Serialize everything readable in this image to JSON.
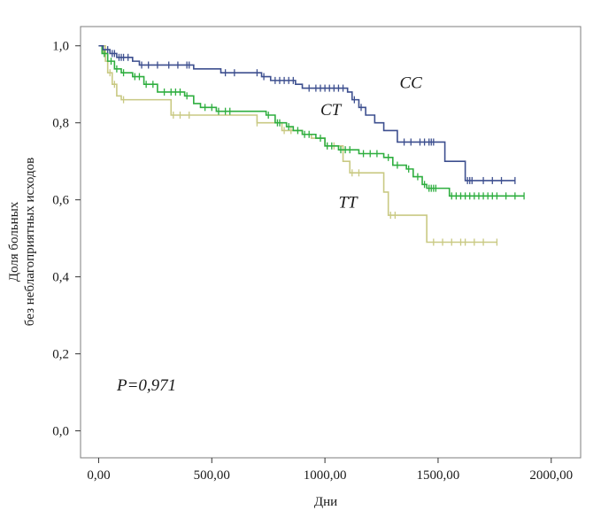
{
  "chart_data": {
    "type": "line",
    "subtype": "kaplan-meier",
    "xlabel": "Дни",
    "ylabel_line1": "Доля больных",
    "ylabel_line2": "без неблагоприятных исходов",
    "xlim": [
      -80,
      2130
    ],
    "ylim": [
      -0.07,
      1.05
    ],
    "xticks": [
      0,
      500,
      1000,
      1500,
      2000
    ],
    "xtick_labels": [
      "0,00",
      "500,00",
      "1000,00",
      "1500,00",
      "2000,00"
    ],
    "yticks": [
      0.0,
      0.2,
      0.4,
      0.6,
      0.8,
      1.0
    ],
    "ytick_labels": [
      "0,0",
      "0,2",
      "0,4",
      "0,6",
      "0,8",
      "1,0"
    ],
    "grid": false,
    "annotation": "P=0,971",
    "series": [
      {
        "name": "CC",
        "color": "#3d4f8f",
        "steps": [
          [
            0,
            1.0
          ],
          [
            20,
            0.99
          ],
          [
            50,
            0.98
          ],
          [
            80,
            0.97
          ],
          [
            150,
            0.96
          ],
          [
            180,
            0.95
          ],
          [
            420,
            0.94
          ],
          [
            540,
            0.93
          ],
          [
            720,
            0.92
          ],
          [
            760,
            0.91
          ],
          [
            870,
            0.9
          ],
          [
            900,
            0.89
          ],
          [
            1100,
            0.88
          ],
          [
            1120,
            0.86
          ],
          [
            1150,
            0.84
          ],
          [
            1180,
            0.82
          ],
          [
            1220,
            0.8
          ],
          [
            1260,
            0.78
          ],
          [
            1320,
            0.75
          ],
          [
            1530,
            0.7
          ],
          [
            1620,
            0.65
          ],
          [
            1840,
            0.65
          ]
        ],
        "censors": [
          [
            40,
            0.99
          ],
          [
            60,
            0.98
          ],
          [
            70,
            0.98
          ],
          [
            90,
            0.97
          ],
          [
            100,
            0.97
          ],
          [
            110,
            0.97
          ],
          [
            130,
            0.97
          ],
          [
            190,
            0.95
          ],
          [
            220,
            0.95
          ],
          [
            260,
            0.95
          ],
          [
            310,
            0.95
          ],
          [
            350,
            0.95
          ],
          [
            390,
            0.95
          ],
          [
            400,
            0.95
          ],
          [
            560,
            0.93
          ],
          [
            600,
            0.93
          ],
          [
            700,
            0.93
          ],
          [
            730,
            0.92
          ],
          [
            780,
            0.91
          ],
          [
            800,
            0.91
          ],
          [
            820,
            0.91
          ],
          [
            840,
            0.91
          ],
          [
            860,
            0.91
          ],
          [
            930,
            0.89
          ],
          [
            960,
            0.89
          ],
          [
            980,
            0.89
          ],
          [
            1000,
            0.89
          ],
          [
            1020,
            0.89
          ],
          [
            1040,
            0.89
          ],
          [
            1060,
            0.89
          ],
          [
            1080,
            0.89
          ],
          [
            1130,
            0.86
          ],
          [
            1160,
            0.84
          ],
          [
            1350,
            0.75
          ],
          [
            1380,
            0.75
          ],
          [
            1420,
            0.75
          ],
          [
            1440,
            0.75
          ],
          [
            1460,
            0.75
          ],
          [
            1470,
            0.75
          ],
          [
            1480,
            0.75
          ],
          [
            1630,
            0.65
          ],
          [
            1640,
            0.65
          ],
          [
            1650,
            0.65
          ],
          [
            1700,
            0.65
          ],
          [
            1740,
            0.65
          ],
          [
            1780,
            0.65
          ],
          [
            1840,
            0.65
          ]
        ]
      },
      {
        "name": "CT",
        "color": "#2eae3f",
        "steps": [
          [
            0,
            1.0
          ],
          [
            15,
            0.98
          ],
          [
            40,
            0.96
          ],
          [
            70,
            0.94
          ],
          [
            100,
            0.93
          ],
          [
            150,
            0.92
          ],
          [
            200,
            0.9
          ],
          [
            260,
            0.88
          ],
          [
            380,
            0.87
          ],
          [
            420,
            0.85
          ],
          [
            450,
            0.84
          ],
          [
            520,
            0.83
          ],
          [
            740,
            0.82
          ],
          [
            780,
            0.8
          ],
          [
            830,
            0.79
          ],
          [
            860,
            0.78
          ],
          [
            900,
            0.77
          ],
          [
            960,
            0.76
          ],
          [
            1000,
            0.74
          ],
          [
            1060,
            0.73
          ],
          [
            1150,
            0.72
          ],
          [
            1260,
            0.71
          ],
          [
            1300,
            0.69
          ],
          [
            1360,
            0.68
          ],
          [
            1390,
            0.66
          ],
          [
            1430,
            0.64
          ],
          [
            1450,
            0.63
          ],
          [
            1550,
            0.61
          ],
          [
            1880,
            0.61
          ]
        ],
        "censors": [
          [
            25,
            0.98
          ],
          [
            55,
            0.96
          ],
          [
            80,
            0.94
          ],
          [
            110,
            0.93
          ],
          [
            160,
            0.92
          ],
          [
            180,
            0.92
          ],
          [
            210,
            0.9
          ],
          [
            240,
            0.9
          ],
          [
            290,
            0.88
          ],
          [
            320,
            0.88
          ],
          [
            340,
            0.88
          ],
          [
            360,
            0.88
          ],
          [
            390,
            0.87
          ],
          [
            470,
            0.84
          ],
          [
            500,
            0.84
          ],
          [
            530,
            0.83
          ],
          [
            560,
            0.83
          ],
          [
            580,
            0.83
          ],
          [
            750,
            0.82
          ],
          [
            790,
            0.8
          ],
          [
            800,
            0.8
          ],
          [
            840,
            0.79
          ],
          [
            880,
            0.78
          ],
          [
            910,
            0.77
          ],
          [
            930,
            0.77
          ],
          [
            980,
            0.76
          ],
          [
            1010,
            0.74
          ],
          [
            1030,
            0.74
          ],
          [
            1070,
            0.73
          ],
          [
            1090,
            0.73
          ],
          [
            1110,
            0.73
          ],
          [
            1170,
            0.72
          ],
          [
            1200,
            0.72
          ],
          [
            1230,
            0.72
          ],
          [
            1280,
            0.71
          ],
          [
            1320,
            0.69
          ],
          [
            1370,
            0.68
          ],
          [
            1410,
            0.66
          ],
          [
            1440,
            0.64
          ],
          [
            1460,
            0.63
          ],
          [
            1470,
            0.63
          ],
          [
            1480,
            0.63
          ],
          [
            1490,
            0.63
          ],
          [
            1560,
            0.61
          ],
          [
            1580,
            0.61
          ],
          [
            1600,
            0.61
          ],
          [
            1620,
            0.61
          ],
          [
            1640,
            0.61
          ],
          [
            1660,
            0.61
          ],
          [
            1680,
            0.61
          ],
          [
            1700,
            0.61
          ],
          [
            1720,
            0.61
          ],
          [
            1740,
            0.61
          ],
          [
            1760,
            0.61
          ],
          [
            1800,
            0.61
          ],
          [
            1840,
            0.61
          ],
          [
            1880,
            0.61
          ]
        ]
      },
      {
        "name": "TT",
        "color": "#c9c983",
        "steps": [
          [
            0,
            1.0
          ],
          [
            30,
            0.96
          ],
          [
            40,
            0.93
          ],
          [
            60,
            0.9
          ],
          [
            80,
            0.87
          ],
          [
            100,
            0.86
          ],
          [
            320,
            0.82
          ],
          [
            340,
            0.82
          ],
          [
            700,
            0.8
          ],
          [
            810,
            0.78
          ],
          [
            900,
            0.77
          ],
          [
            940,
            0.76
          ],
          [
            1000,
            0.74
          ],
          [
            1080,
            0.7
          ],
          [
            1110,
            0.67
          ],
          [
            1260,
            0.62
          ],
          [
            1280,
            0.56
          ],
          [
            1450,
            0.49
          ],
          [
            1760,
            0.49
          ]
        ],
        "censors": [
          [
            20,
            0.99
          ],
          [
            50,
            0.93
          ],
          [
            70,
            0.9
          ],
          [
            110,
            0.86
          ],
          [
            330,
            0.82
          ],
          [
            360,
            0.82
          ],
          [
            400,
            0.82
          ],
          [
            700,
            0.8
          ],
          [
            820,
            0.78
          ],
          [
            850,
            0.78
          ],
          [
            1010,
            0.74
          ],
          [
            1040,
            0.74
          ],
          [
            1120,
            0.67
          ],
          [
            1150,
            0.67
          ],
          [
            1290,
            0.56
          ],
          [
            1310,
            0.56
          ],
          [
            1480,
            0.49
          ],
          [
            1520,
            0.49
          ],
          [
            1560,
            0.49
          ],
          [
            1600,
            0.49
          ],
          [
            1620,
            0.49
          ],
          [
            1660,
            0.49
          ],
          [
            1700,
            0.49
          ],
          [
            1760,
            0.49
          ]
        ]
      }
    ],
    "curve_labels": [
      {
        "text": "CC",
        "x": 1330,
        "y": 0.89
      },
      {
        "text": "CT",
        "x": 980,
        "y": 0.82
      },
      {
        "text": "TT",
        "x": 1060,
        "y": 0.58
      }
    ]
  }
}
